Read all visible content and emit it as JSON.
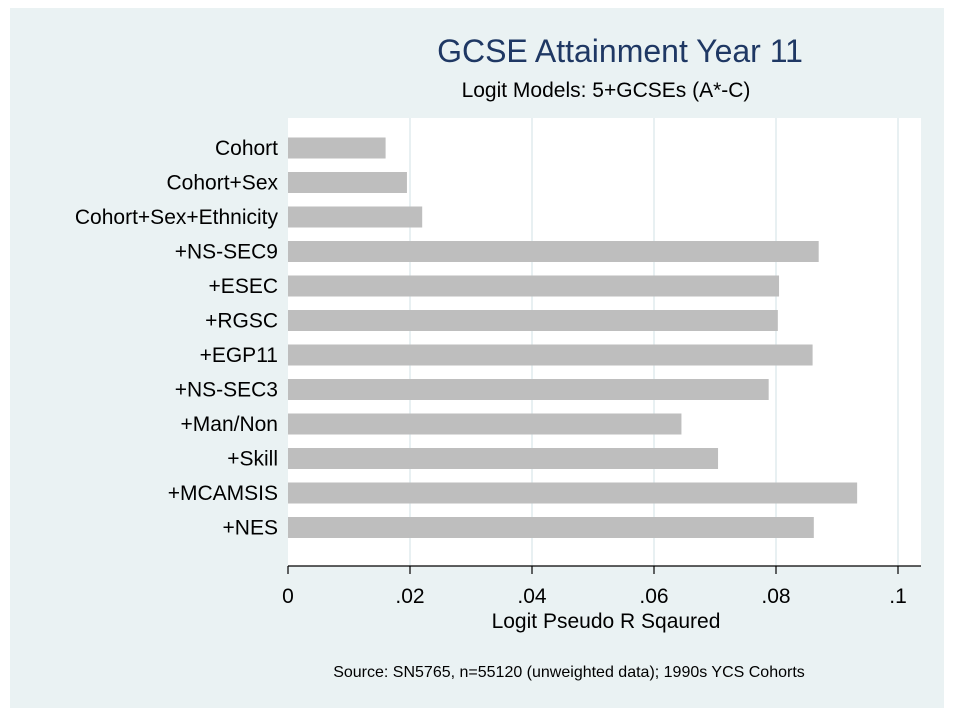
{
  "chart_data": {
    "type": "bar",
    "orientation": "horizontal",
    "title": "GCSE Attainment Year 11",
    "subtitle": "Logit Models: 5+GCSEs (A*-C)",
    "xlabel": "Logit Pseudo R Sqaured",
    "ylabel": "",
    "note": "Source: SN5765, n=55120 (unweighted data); 1990s YCS Cohorts",
    "categories": [
      "Cohort",
      "Cohort+Sex",
      "Cohort+Sex+Ethnicity",
      "+NS-SEC9",
      "+ESEC",
      "+RGSC",
      "+EGP11",
      "+NS-SEC3",
      "+Man/Non",
      "+Skill",
      "+MCAMSIS",
      "+NES"
    ],
    "values": [
      0.016,
      0.0195,
      0.022,
      0.087,
      0.0805,
      0.0803,
      0.086,
      0.0788,
      0.0645,
      0.0705,
      0.0933,
      0.0862
    ],
    "xlim": [
      0,
      0.1
    ],
    "xticks": [
      0,
      0.02,
      0.04,
      0.06,
      0.08,
      0.1
    ],
    "xtick_labels": [
      "0",
      ".02",
      ".04",
      ".06",
      ".08",
      ".1"
    ],
    "grid": true,
    "legend": "none",
    "colors": {
      "bar": "#bebebe",
      "gridline": "#d9e6e8",
      "plot_bg": "#ffffff",
      "outer_bg": "#eaf2f3",
      "title": "#1f3864"
    }
  }
}
